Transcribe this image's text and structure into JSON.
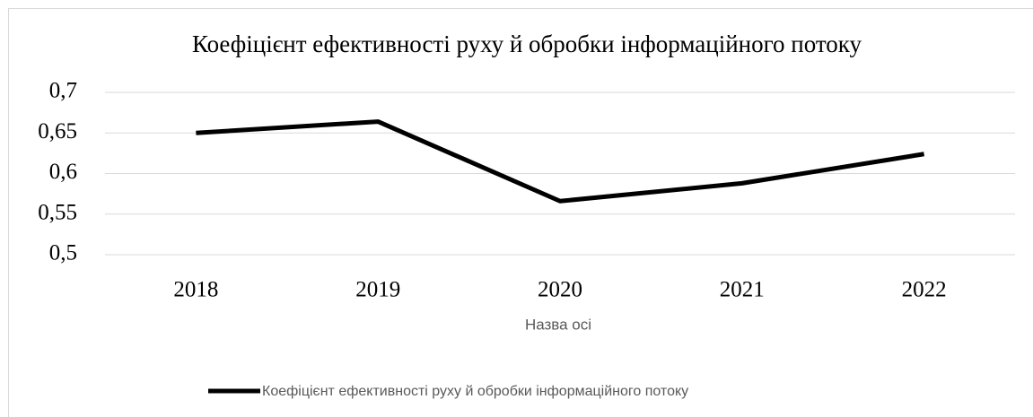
{
  "chart_data": {
    "type": "line",
    "title": "Коефіцієнт ефективності руху й обробки інформаційного потоку",
    "x_label": "Назва осі",
    "categories": [
      "2018",
      "2019",
      "2020",
      "2021",
      "2022"
    ],
    "series": [
      {
        "name": "Коефіцієнт ефективності руху й обробки інформаційного потоку",
        "color": "#000000",
        "values": [
          0.65,
          0.664,
          0.566,
          0.588,
          0.624
        ]
      }
    ],
    "ylim": [
      0.5,
      0.7
    ],
    "yticks": [
      {
        "value": 0.5,
        "label": "0,5"
      },
      {
        "value": 0.55,
        "label": "0,55"
      },
      {
        "value": 0.6,
        "label": "0,6"
      },
      {
        "value": 0.65,
        "label": "0,65"
      },
      {
        "value": 0.7,
        "label": "0,7"
      }
    ],
    "grid": true,
    "legend": "bottom"
  }
}
